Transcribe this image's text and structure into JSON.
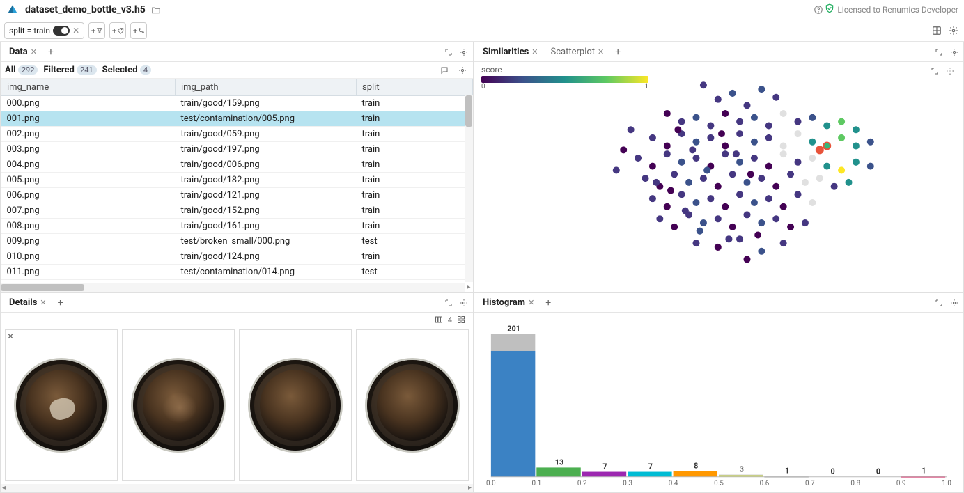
{
  "header": {
    "filename": "dataset_demo_bottle_v3.h5",
    "license_text": "Licensed to Renumics Developer"
  },
  "filter": {
    "chip_text": "split = train"
  },
  "data_panel": {
    "tab": "Data",
    "segments": {
      "all_label": "All",
      "all_count": "292",
      "filtered_label": "Filtered",
      "filtered_count": "241",
      "selected_label": "Selected",
      "selected_count": "4"
    },
    "columns": [
      "img_name",
      "img_path",
      "split"
    ],
    "rows": [
      {
        "c": [
          "000.png",
          "train/good/159.png",
          "train"
        ],
        "sel": false
      },
      {
        "c": [
          "001.png",
          "test/contamination/005.png",
          "train"
        ],
        "sel": true
      },
      {
        "c": [
          "002.png",
          "train/good/059.png",
          "train"
        ],
        "sel": false
      },
      {
        "c": [
          "003.png",
          "train/good/197.png",
          "train"
        ],
        "sel": false
      },
      {
        "c": [
          "004.png",
          "train/good/006.png",
          "train"
        ],
        "sel": false
      },
      {
        "c": [
          "005.png",
          "train/good/182.png",
          "train"
        ],
        "sel": false
      },
      {
        "c": [
          "006.png",
          "train/good/121.png",
          "train"
        ],
        "sel": false
      },
      {
        "c": [
          "007.png",
          "train/good/152.png",
          "train"
        ],
        "sel": false
      },
      {
        "c": [
          "008.png",
          "train/good/161.png",
          "train"
        ],
        "sel": false
      },
      {
        "c": [
          "009.png",
          "test/broken_small/000.png",
          "test"
        ],
        "sel": false
      },
      {
        "c": [
          "010.png",
          "train/good/124.png",
          "train"
        ],
        "sel": false
      },
      {
        "c": [
          "011.png",
          "test/contamination/014.png",
          "test"
        ],
        "sel": false
      }
    ]
  },
  "similarities_panel": {
    "tab1": "Similarities",
    "tab2": "Scatterplot",
    "legend_label": "score",
    "min": "0",
    "max": "1"
  },
  "scatter": {
    "type": "scatter",
    "xlim": [
      0,
      100
    ],
    "ylim": [
      0,
      100
    ],
    "background": "#ffffff",
    "marker_size": 5,
    "selected_ring_color": "#e8533a",
    "points": [
      {
        "x": 40,
        "y": 92,
        "c": "#453781"
      },
      {
        "x": 44,
        "y": 85,
        "c": "#453781"
      },
      {
        "x": 48,
        "y": 88,
        "c": "#3b528b"
      },
      {
        "x": 52,
        "y": 82,
        "c": "#453781"
      },
      {
        "x": 56,
        "y": 90,
        "c": "#3b528b"
      },
      {
        "x": 60,
        "y": 86,
        "c": "#453781"
      },
      {
        "x": 30,
        "y": 78,
        "c": "#440154"
      },
      {
        "x": 34,
        "y": 74,
        "c": "#453781"
      },
      {
        "x": 38,
        "y": 76,
        "c": "#3b528b"
      },
      {
        "x": 42,
        "y": 72,
        "c": "#453781"
      },
      {
        "x": 46,
        "y": 78,
        "c": "#440154"
      },
      {
        "x": 50,
        "y": 74,
        "c": "#453781"
      },
      {
        "x": 54,
        "y": 76,
        "c": "#3b528b"
      },
      {
        "x": 58,
        "y": 72,
        "c": "#453781"
      },
      {
        "x": 62,
        "y": 78,
        "c": "#e0e0e0"
      },
      {
        "x": 66,
        "y": 74,
        "c": "#453781"
      },
      {
        "x": 70,
        "y": 76,
        "c": "#3b528b"
      },
      {
        "x": 74,
        "y": 72,
        "c": "#21918c"
      },
      {
        "x": 78,
        "y": 74,
        "c": "#5ec962"
      },
      {
        "x": 82,
        "y": 70,
        "c": "#21918c"
      },
      {
        "x": 26,
        "y": 66,
        "c": "#453781"
      },
      {
        "x": 30,
        "y": 62,
        "c": "#440154"
      },
      {
        "x": 34,
        "y": 68,
        "c": "#453781"
      },
      {
        "x": 38,
        "y": 64,
        "c": "#3b528b"
      },
      {
        "x": 42,
        "y": 66,
        "c": "#453781"
      },
      {
        "x": 46,
        "y": 62,
        "c": "#440154"
      },
      {
        "x": 50,
        "y": 68,
        "c": "#453781"
      },
      {
        "x": 54,
        "y": 64,
        "c": "#3b528b"
      },
      {
        "x": 58,
        "y": 66,
        "c": "#453781"
      },
      {
        "x": 62,
        "y": 62,
        "c": "#e0e0e0"
      },
      {
        "x": 66,
        "y": 68,
        "c": "#e0e0e0"
      },
      {
        "x": 70,
        "y": 64,
        "c": "#21918c"
      },
      {
        "x": 74,
        "y": 62,
        "c": "#35b779",
        "sel": true
      },
      {
        "x": 72,
        "y": 60,
        "c": "#e8533a",
        "sel": true
      },
      {
        "x": 78,
        "y": 66,
        "c": "#5ec962"
      },
      {
        "x": 82,
        "y": 62,
        "c": "#21918c"
      },
      {
        "x": 86,
        "y": 64,
        "c": "#3b528b"
      },
      {
        "x": 22,
        "y": 56,
        "c": "#453781"
      },
      {
        "x": 26,
        "y": 52,
        "c": "#440154"
      },
      {
        "x": 30,
        "y": 58,
        "c": "#453781"
      },
      {
        "x": 34,
        "y": 54,
        "c": "#3b528b"
      },
      {
        "x": 38,
        "y": 56,
        "c": "#453781"
      },
      {
        "x": 42,
        "y": 52,
        "c": "#440154"
      },
      {
        "x": 46,
        "y": 58,
        "c": "#453781"
      },
      {
        "x": 50,
        "y": 54,
        "c": "#3b528b"
      },
      {
        "x": 54,
        "y": 56,
        "c": "#453781"
      },
      {
        "x": 58,
        "y": 52,
        "c": "#440154"
      },
      {
        "x": 62,
        "y": 58,
        "c": "#e0e0e0"
      },
      {
        "x": 66,
        "y": 54,
        "c": "#453781"
      },
      {
        "x": 70,
        "y": 56,
        "c": "#e0e0e0"
      },
      {
        "x": 74,
        "y": 52,
        "c": "#21918c"
      },
      {
        "x": 78,
        "y": 50,
        "c": "#fde725"
      },
      {
        "x": 82,
        "y": 54,
        "c": "#21918c"
      },
      {
        "x": 86,
        "y": 52,
        "c": "#3b528b"
      },
      {
        "x": 24,
        "y": 46,
        "c": "#453781"
      },
      {
        "x": 28,
        "y": 42,
        "c": "#440154"
      },
      {
        "x": 32,
        "y": 48,
        "c": "#453781"
      },
      {
        "x": 36,
        "y": 44,
        "c": "#3b528b"
      },
      {
        "x": 40,
        "y": 46,
        "c": "#453781"
      },
      {
        "x": 44,
        "y": 42,
        "c": "#440154"
      },
      {
        "x": 48,
        "y": 48,
        "c": "#453781"
      },
      {
        "x": 52,
        "y": 44,
        "c": "#3b528b"
      },
      {
        "x": 56,
        "y": 46,
        "c": "#453781"
      },
      {
        "x": 60,
        "y": 42,
        "c": "#440154"
      },
      {
        "x": 64,
        "y": 48,
        "c": "#453781"
      },
      {
        "x": 68,
        "y": 44,
        "c": "#e0e0e0"
      },
      {
        "x": 72,
        "y": 46,
        "c": "#e0e0e0"
      },
      {
        "x": 76,
        "y": 42,
        "c": "#453781"
      },
      {
        "x": 80,
        "y": 44,
        "c": "#21918c"
      },
      {
        "x": 26,
        "y": 36,
        "c": "#453781"
      },
      {
        "x": 30,
        "y": 32,
        "c": "#440154"
      },
      {
        "x": 34,
        "y": 38,
        "c": "#453781"
      },
      {
        "x": 38,
        "y": 34,
        "c": "#3b528b"
      },
      {
        "x": 42,
        "y": 36,
        "c": "#453781"
      },
      {
        "x": 46,
        "y": 32,
        "c": "#440154"
      },
      {
        "x": 50,
        "y": 38,
        "c": "#453781"
      },
      {
        "x": 54,
        "y": 34,
        "c": "#3b528b"
      },
      {
        "x": 58,
        "y": 36,
        "c": "#453781"
      },
      {
        "x": 62,
        "y": 32,
        "c": "#440154"
      },
      {
        "x": 66,
        "y": 38,
        "c": "#453781"
      },
      {
        "x": 70,
        "y": 34,
        "c": "#e0e0e0"
      },
      {
        "x": 28,
        "y": 26,
        "c": "#453781"
      },
      {
        "x": 32,
        "y": 22,
        "c": "#440154"
      },
      {
        "x": 36,
        "y": 28,
        "c": "#453781"
      },
      {
        "x": 40,
        "y": 24,
        "c": "#3b528b"
      },
      {
        "x": 44,
        "y": 26,
        "c": "#453781"
      },
      {
        "x": 48,
        "y": 22,
        "c": "#440154"
      },
      {
        "x": 52,
        "y": 28,
        "c": "#453781"
      },
      {
        "x": 56,
        "y": 24,
        "c": "#3b528b"
      },
      {
        "x": 60,
        "y": 26,
        "c": "#453781"
      },
      {
        "x": 64,
        "y": 22,
        "c": "#440154"
      },
      {
        "x": 68,
        "y": 24,
        "c": "#453781"
      },
      {
        "x": 38,
        "y": 14,
        "c": "#453781"
      },
      {
        "x": 44,
        "y": 12,
        "c": "#440154"
      },
      {
        "x": 50,
        "y": 16,
        "c": "#453781"
      },
      {
        "x": 56,
        "y": 10,
        "c": "#3b528b"
      },
      {
        "x": 62,
        "y": 14,
        "c": "#453781"
      },
      {
        "x": 52,
        "y": 6,
        "c": "#440154"
      },
      {
        "x": 20,
        "y": 70,
        "c": "#453781"
      },
      {
        "x": 18,
        "y": 60,
        "c": "#440154"
      },
      {
        "x": 16,
        "y": 50,
        "c": "#453781"
      },
      {
        "x": 33,
        "y": 70,
        "c": "#440154"
      },
      {
        "x": 37,
        "y": 60,
        "c": "#453781"
      },
      {
        "x": 41,
        "y": 50,
        "c": "#3b528b"
      },
      {
        "x": 45,
        "y": 68,
        "c": "#440154"
      },
      {
        "x": 49,
        "y": 58,
        "c": "#453781"
      },
      {
        "x": 53,
        "y": 48,
        "c": "#440154"
      },
      {
        "x": 27,
        "y": 44,
        "c": "#453781"
      },
      {
        "x": 31,
        "y": 40,
        "c": "#440154"
      },
      {
        "x": 35,
        "y": 30,
        "c": "#453781"
      },
      {
        "x": 39,
        "y": 20,
        "c": "#3b528b"
      },
      {
        "x": 55,
        "y": 18,
        "c": "#440154"
      },
      {
        "x": 47,
        "y": 16,
        "c": "#453781"
      }
    ]
  },
  "details_panel": {
    "tab": "Details",
    "grid_count": "4",
    "thumbs": [
      {
        "variant": "contam"
      },
      {
        "variant": "smudge"
      },
      {
        "variant": "plain"
      },
      {
        "variant": "plain"
      }
    ]
  },
  "histogram_panel": {
    "tab": "Histogram",
    "type": "histogram",
    "xlim": [
      0.0,
      1.0
    ],
    "xtick_step": 0.1,
    "xticks": [
      "0.0",
      "0.1",
      "0.2",
      "0.3",
      "0.4",
      "0.5",
      "0.6",
      "0.7",
      "0.8",
      "0.9",
      "1.0"
    ],
    "max_value": 201,
    "background": "#ffffff",
    "bars": [
      {
        "label": "201",
        "value": 201,
        "color": "#3b82c4",
        "sel": 0.12
      },
      {
        "label": "13",
        "value": 13,
        "color": "#4caf50",
        "sel": 0
      },
      {
        "label": "7",
        "value": 7,
        "color": "#9c27b0",
        "sel": 0
      },
      {
        "label": "7",
        "value": 7,
        "color": "#00bcd4",
        "sel": 0
      },
      {
        "label": "8",
        "value": 8,
        "color": "#ff9800",
        "sel": 0
      },
      {
        "label": "3",
        "value": 3,
        "color": "#cddc39",
        "sel": 0.3
      },
      {
        "label": "1",
        "value": 1,
        "color": "#bdbdbd",
        "sel": 0
      },
      {
        "label": "0",
        "value": 0,
        "color": "#bdbdbd",
        "sel": 0
      },
      {
        "label": "0",
        "value": 0,
        "color": "#bdbdbd",
        "sel": 0
      },
      {
        "label": "1",
        "value": 1,
        "color": "#e91e63",
        "sel": 0
      }
    ],
    "sel_color": "#bfbfbf"
  }
}
